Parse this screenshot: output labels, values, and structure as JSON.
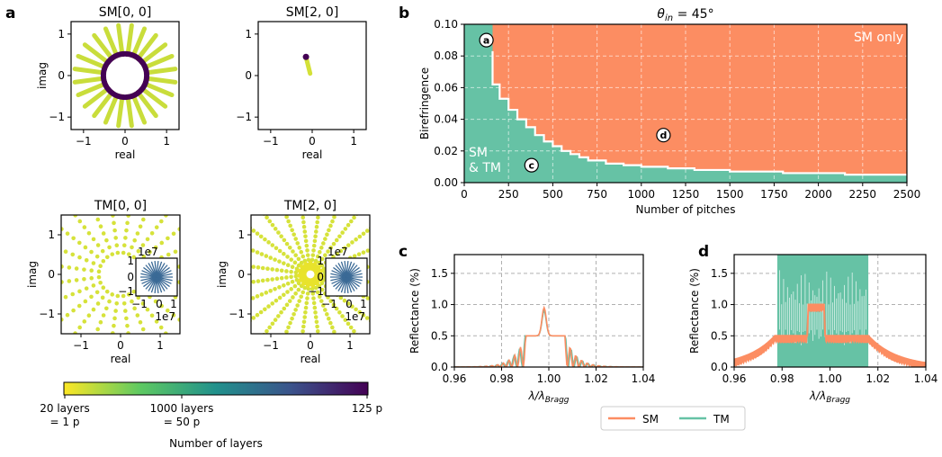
{
  "panel_letters": {
    "a": "a",
    "b": "b",
    "c": "c",
    "d": "d"
  },
  "chart_data": [
    {
      "id": "SM00",
      "type": "scatter",
      "title": "SM[0, 0]",
      "xlabel": "real",
      "ylabel": "imag",
      "xlim": [
        -1.3,
        1.3
      ],
      "ylim": [
        -1.3,
        1.3
      ],
      "xticks": [
        "−1",
        "0",
        "1"
      ],
      "yticks": [
        "1",
        "0",
        "−1"
      ],
      "description_data": {
        "inner_radius": 0.5,
        "outer_radius": 1.2,
        "spokes": 24,
        "dark_ring_radius": 0.5
      }
    },
    {
      "id": "SM20",
      "type": "scatter",
      "title": "SM[2, 0]",
      "xlabel": "real",
      "ylabel": "",
      "xlim": [
        -1.3,
        1.3
      ],
      "ylim": [
        -1.3,
        1.3
      ],
      "xticks": [
        "−1",
        "0",
        "1"
      ],
      "yticks": [
        "1",
        "0",
        "−1"
      ],
      "segment": {
        "x0": -0.05,
        "y0": 0.05,
        "x1": -0.15,
        "y1": 0.45
      }
    },
    {
      "id": "TM00",
      "type": "scatter",
      "title": "TM[0, 0]",
      "xlabel": "real",
      "ylabel": "imag",
      "xlim": [
        -1.5,
        1.5
      ],
      "ylim": [
        -1.5,
        1.5
      ],
      "xticks": [
        "−1",
        "0",
        "1"
      ],
      "yticks": [
        "1",
        "0",
        "−1"
      ],
      "inset": {
        "exponent_top": "1e7",
        "exponent_bottom": "1e7",
        "xticks": [
          "−1",
          "0",
          "1"
        ],
        "yticks": [
          "1",
          "0",
          "−1"
        ]
      }
    },
    {
      "id": "TM20",
      "type": "scatter",
      "title": "TM[2, 0]",
      "xlabel": "real",
      "ylabel": "imag",
      "xlim": [
        -1.5,
        1.5
      ],
      "ylim": [
        -1.5,
        1.5
      ],
      "xticks": [
        "−1",
        "0",
        "1"
      ],
      "yticks": [
        "1",
        "0",
        "−1"
      ],
      "inset": {
        "exponent_top": "1e7",
        "exponent_bottom": "1e7",
        "xticks": [
          "−1",
          "0",
          "1"
        ],
        "yticks": [
          "1",
          "0",
          "−1"
        ]
      }
    },
    {
      "id": "phase",
      "type": "area",
      "title_main": "θ",
      "title_sub": "in",
      "title_rest": " = 45°",
      "xlabel": "Number of pitches",
      "ylabel": "Birefringence",
      "xlim": [
        0,
        2500
      ],
      "ylim": [
        0,
        0.1
      ],
      "xticks": [
        0,
        250,
        500,
        750,
        1000,
        1250,
        1500,
        1750,
        2000,
        2250,
        2500
      ],
      "yticks": [
        "0.00",
        "0.02",
        "0.04",
        "0.06",
        "0.08",
        "0.10"
      ],
      "colors": {
        "sm_only": "#fc8d62",
        "sm_tm": "#66c2a5"
      },
      "region_labels": {
        "sm_only": "SM only",
        "sm_tm_line1": "SM",
        "sm_tm_line2": "& TM"
      },
      "markers": [
        {
          "label": "a",
          "x": 125,
          "y": 0.09
        },
        {
          "label": "c",
          "x": 380,
          "y": 0.011
        },
        {
          "label": "d",
          "x": 1125,
          "y": 0.03
        }
      ],
      "boundary": {
        "x": [
          0,
          160,
          160,
          200,
          200,
          250,
          250,
          300,
          300,
          350,
          350,
          400,
          400,
          450,
          450,
          500,
          500,
          550,
          550,
          600,
          600,
          650,
          650,
          700,
          700,
          800,
          800,
          900,
          900,
          1000,
          1000,
          1150,
          1150,
          1300,
          1300,
          1500,
          1500,
          1800,
          1800,
          2150,
          2150,
          2500
        ],
        "y": [
          0.083,
          0.083,
          0.062,
          0.062,
          0.053,
          0.053,
          0.046,
          0.046,
          0.04,
          0.04,
          0.035,
          0.035,
          0.03,
          0.03,
          0.026,
          0.026,
          0.023,
          0.023,
          0.02,
          0.02,
          0.018,
          0.018,
          0.016,
          0.016,
          0.014,
          0.014,
          0.012,
          0.012,
          0.011,
          0.011,
          0.01,
          0.01,
          0.009,
          0.009,
          0.008,
          0.008,
          0.007,
          0.007,
          0.006,
          0.006,
          0.005,
          0.005
        ]
      }
    },
    {
      "id": "refl_c",
      "type": "line",
      "xlabel_main": "λ/λ",
      "xlabel_sub": "Bragg",
      "ylabel": "Reflectance (%)",
      "xlim": [
        0.96,
        1.04
      ],
      "ylim": [
        0,
        1.8
      ],
      "xticks": [
        "0.96",
        "0.98",
        "1.00",
        "1.02",
        "1.04"
      ],
      "yticks": [
        "0.0",
        "0.5",
        "1.0",
        "1.5"
      ],
      "series": [
        {
          "name": "SM",
          "color": "#fc8d62",
          "band": [
            0.99,
            1.007
          ],
          "plateau": 0.5,
          "peak": 0.95,
          "peak_center": 0.998
        },
        {
          "name": "TM",
          "color": "#66c2a5",
          "band": [
            0.99,
            1.007
          ],
          "plateau": 0.5,
          "peak": 0.9,
          "peak_center": 0.998
        }
      ]
    },
    {
      "id": "refl_d",
      "type": "line",
      "xlabel_main": "λ/λ",
      "xlabel_sub": "Bragg",
      "ylabel": "Reflectance (%)",
      "xlim": [
        0.96,
        1.04
      ],
      "ylim": [
        0,
        1.8
      ],
      "xticks": [
        "0.96",
        "0.98",
        "1.00",
        "1.02",
        "1.04"
      ],
      "yticks": [
        "0.0",
        "0.5",
        "1.0",
        "1.5"
      ],
      "series": [
        {
          "name": "SM",
          "color": "#fc8d62",
          "band": [
            0.977,
            1.016
          ],
          "plateau": 0.5,
          "peak": 1.0,
          "peak_center": 0.994
        },
        {
          "name": "TM",
          "color": "#66c2a5",
          "band": [
            0.978,
            1.016
          ],
          "plateau": 1.8
        }
      ]
    }
  ],
  "legend": {
    "items": [
      {
        "label": "SM",
        "color": "#fc8d62"
      },
      {
        "label": "TM",
        "color": "#66c2a5"
      }
    ]
  },
  "colorbar": {
    "label": "Number of layers",
    "colors": [
      "#fde725",
      "#5ec962",
      "#21918c",
      "#3b528b",
      "#440154"
    ],
    "tick_left_line1": "20 layers",
    "tick_left_line2": "= 1 p",
    "tick_mid_line1": "1000 layers",
    "tick_mid_line2": "= 50 p",
    "tick_right": "125 p"
  }
}
